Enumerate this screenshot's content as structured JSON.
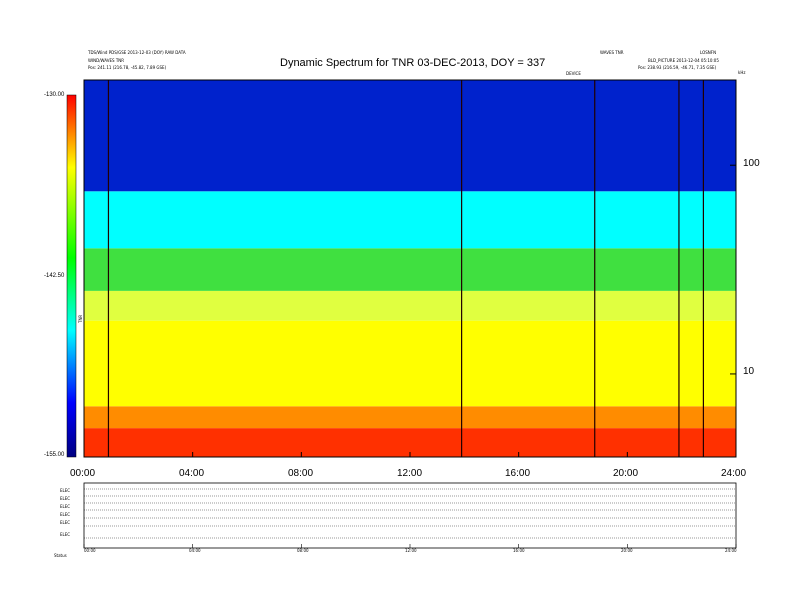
{
  "header": {
    "left_line1": "TDS/Wind PDS/GSE 2013-12-03 (DOY) RAW DATA",
    "left_line2": "WIND/WAVES TNR",
    "left_line3": "Pos:   241.11 (216.78, -45.82, 7.89 GSE)",
    "right_line1": "WAVES TNR",
    "right_line2": "LOSNFN",
    "right_line3": "BLD_PICTURE 2013-12-04 05:10:05",
    "right_line4": "Pos:   238.93 (216.59, -46.71, 7.35 GSE)",
    "small_center": "DEVICE",
    "small_corner": "kHz"
  },
  "chart_data": {
    "type": "heatmap",
    "title": "Dynamic Spectrum for TNR 03-DEC-2013, DOY = 337",
    "colorbar": {
      "label": "TNR",
      "ticks": [
        "-130.00",
        "-142.50",
        "-155.00"
      ],
      "range": [
        -155.0,
        -130.0
      ],
      "colors": [
        "#000080",
        "#0000ff",
        "#00ffff",
        "#00ff00",
        "#ffff00",
        "#ff0000"
      ]
    },
    "x_ticks": [
      "00:00",
      "04:00",
      "08:00",
      "12:00",
      "16:00",
      "20:00",
      "24:00"
    ],
    "x_range_hours": [
      0,
      24
    ],
    "y_right_ticks": [
      "100",
      "10"
    ],
    "y_right_values": [
      100,
      10
    ],
    "y_range_khz": [
      4,
      256
    ],
    "y_scale": "log",
    "radio_bursts_hours": [
      0.9,
      13.9,
      18.8,
      21.9,
      22.8
    ],
    "background_bands": [
      {
        "f_min": 4,
        "f_max": 5.5,
        "color": "#ff3000"
      },
      {
        "f_min": 5.5,
        "f_max": 7,
        "color": "#ff8c00"
      },
      {
        "f_min": 7,
        "f_max": 18,
        "color": "#ffff00"
      },
      {
        "f_min": 18,
        "f_max": 25,
        "color": "#e0ff40"
      },
      {
        "f_min": 25,
        "f_max": 40,
        "color": "#40e040"
      },
      {
        "f_min": 40,
        "f_max": 75,
        "color": "#00ffff"
      },
      {
        "f_min": 75,
        "f_max": 256,
        "color": "#0022cc"
      }
    ],
    "strips": {
      "labels": [
        "ELEC",
        "ELEC",
        "ELEC",
        "ELEC",
        "ELEC",
        "ELEC"
      ],
      "x_ticks": [
        "00:00",
        "04:00",
        "08:00",
        "12:00",
        "16:00",
        "20:00",
        "24:00"
      ],
      "left_bottom_label": "Status"
    }
  }
}
